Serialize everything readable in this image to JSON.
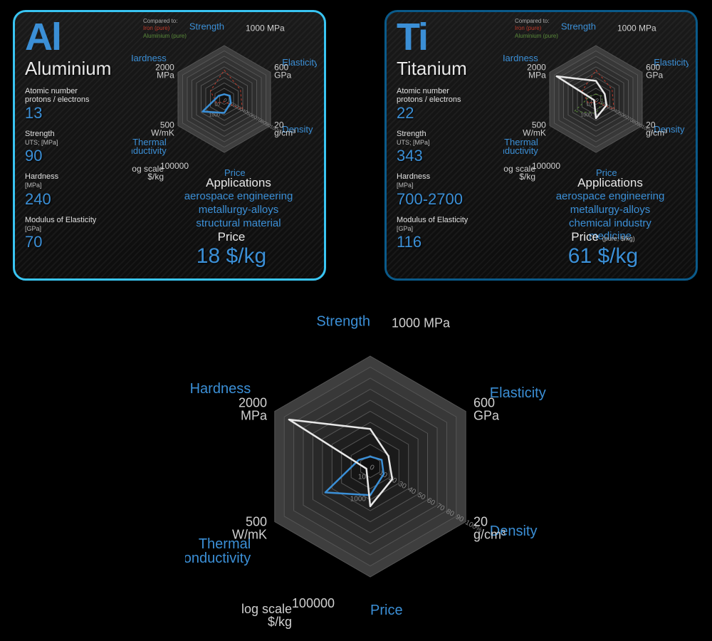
{
  "colors": {
    "accent_al": "#3b8fd6",
    "accent_ti": "#3b8fd6",
    "border_al": "#39c5f3",
    "border_ti": "#0a5a8a",
    "value_al": "#3b8fd6",
    "value_ti": "#3b8fd6",
    "series_al": "#3b8fd6",
    "series_ti": "#e8e8e8",
    "series_iron": "#c03a2a",
    "series_alum_ref": "#5a8a3a",
    "hex_shades": [
      "#3e3e3e",
      "#383838",
      "#333333",
      "#2e2e2e",
      "#292929",
      "#242424",
      "#1f1f1f",
      "#1a1a1a",
      "#151515",
      "#101010"
    ],
    "axis_label": "#3b8fd6",
    "unit_label": "#d0d0d0"
  },
  "legend": {
    "title": "Compared to:",
    "items": [
      {
        "label": "Iron (pure)",
        "color": "#c03a2a"
      },
      {
        "label": "Aluminium (pure)",
        "color": "#5a8a3a"
      }
    ]
  },
  "radar": {
    "axes": [
      {
        "key": "strength",
        "label": "Strength",
        "unit": "1000 MPa"
      },
      {
        "key": "elasticity",
        "label": "Elasticity",
        "unit": "600\nGPa"
      },
      {
        "key": "density",
        "label": "Density",
        "unit": "20\ng/cm³"
      },
      {
        "key": "price",
        "label": "Price",
        "unit": "100000",
        "sub": "log scale\n$/kg"
      },
      {
        "key": "thermal",
        "label": "Thermal\nConductivity",
        "unit": "500\nW/mK"
      },
      {
        "key": "hardness",
        "label": "Hardness",
        "unit": "2000\nMPa"
      }
    ],
    "tick_labels_density_dir": [
      "0",
      "10",
      "20",
      "30",
      "40",
      "50",
      "60",
      "70",
      "80",
      "90",
      "100%"
    ],
    "tick_labels_price_dir": [
      "10",
      "1000"
    ],
    "rings": 10
  },
  "elements": [
    {
      "id": "al",
      "symbol": "Al",
      "name": "Aluminium",
      "border_color": "#39c5f3",
      "symbol_color": "#3b8fd6",
      "value_color": "#3b8fd6",
      "props": [
        {
          "label": "Atomic number\nprotons / electrons",
          "value": "13"
        },
        {
          "label": "Strength",
          "sub": "UTS; [MPa]",
          "value": "90"
        },
        {
          "label": "Hardness",
          "sub": "[MPa]",
          "value": "240"
        },
        {
          "label": "Modulus of Elasticity",
          "sub": "[GPa]",
          "value": "70"
        }
      ],
      "applications_title": "Applications",
      "applications": [
        "aerospace engineering",
        "metallurgy-alloys",
        "structural material"
      ],
      "price_title": "Price",
      "price_sub": "",
      "price_value": "18 $/kg",
      "series_color": "#3b8fd6",
      "series_pct": {
        "strength": 9,
        "elasticity": 12,
        "density": 14,
        "price": 26,
        "thermal": 47,
        "hardness": 12
      }
    },
    {
      "id": "ti",
      "symbol": "Ti",
      "name": "Titanium",
      "border_color": "#0a5a8a",
      "symbol_color": "#3b8fd6",
      "value_color": "#3b8fd6",
      "props": [
        {
          "label": "Atomic number\nprotons / electrons",
          "value": "22"
        },
        {
          "label": "Strength",
          "sub": "UTS; [MPa]",
          "value": "343"
        },
        {
          "label": "Hardness",
          "sub": "[MPa]",
          "value": "700-2700"
        },
        {
          "label": "Modulus of Elasticity",
          "sub": "[GPa]",
          "value": "116"
        }
      ],
      "applications_title": "Applications",
      "applications": [
        "aerospace engineering",
        "metallurgy-alloys",
        "chemical industry",
        "medicine"
      ],
      "price_title": "Price",
      "price_sub": "(pure; $/kg)",
      "price_value": "61 $/kg",
      "series_color": "#e8e8e8",
      "series_pct": {
        "strength": 34,
        "elasticity": 19,
        "density": 23,
        "price": 36,
        "thermal": 4,
        "hardness": 85
      }
    }
  ],
  "reference_series": {
    "iron": {
      "color": "#c03a2a",
      "pct": {
        "strength": 54,
        "elasticity": 35,
        "density": 39,
        "price": 5,
        "thermal": 16,
        "hardness": 30
      }
    },
    "alum": {
      "color": "#5a8a3a",
      "pct": {
        "strength": 9,
        "elasticity": 12,
        "density": 14,
        "price": 26,
        "thermal": 47,
        "hardness": 12
      }
    }
  }
}
